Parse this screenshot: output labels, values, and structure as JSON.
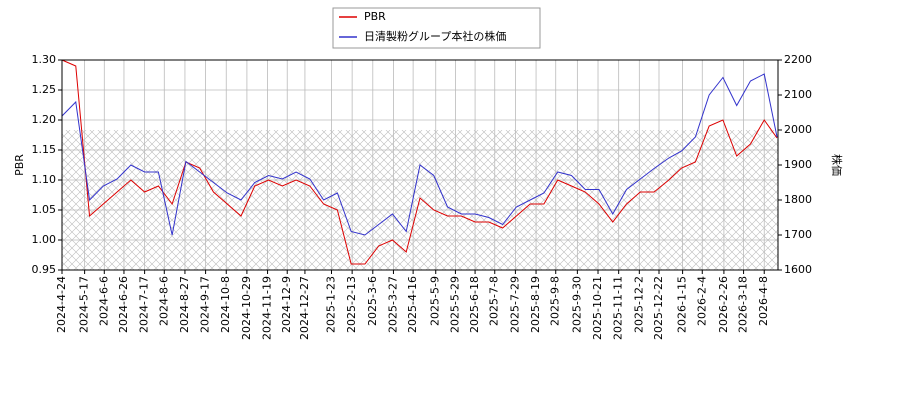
{
  "chart_data": {
    "type": "line",
    "series": [
      {
        "name": "PBR",
        "color": "#dd0000",
        "axis": "y",
        "values": [
          1.3,
          1.29,
          1.04,
          1.06,
          1.08,
          1.1,
          1.08,
          1.09,
          1.06,
          1.13,
          1.12,
          1.08,
          1.06,
          1.04,
          1.09,
          1.1,
          1.09,
          1.1,
          1.09,
          1.06,
          1.05,
          0.96,
          0.96,
          0.99,
          1.0,
          0.98,
          1.07,
          1.05,
          1.04,
          1.04,
          1.03,
          1.03,
          1.02,
          1.04,
          1.06,
          1.06,
          1.1,
          1.09,
          1.08,
          1.06,
          1.03,
          1.06,
          1.08,
          1.08,
          1.1,
          1.12,
          1.13,
          1.19,
          1.2,
          1.14,
          1.16,
          1.2,
          1.17
        ]
      },
      {
        "name": "日清製粉グループ本社の株価",
        "color": "#3333cc",
        "axis": "y2",
        "values": [
          2040,
          2080,
          1800,
          1840,
          1860,
          1900,
          1880,
          1880,
          1700,
          1910,
          1880,
          1850,
          1820,
          1800,
          1850,
          1870,
          1860,
          1880,
          1860,
          1800,
          1820,
          1710,
          1700,
          1730,
          1760,
          1710,
          1900,
          1870,
          1780,
          1760,
          1760,
          1750,
          1730,
          1780,
          1800,
          1820,
          1880,
          1870,
          1830,
          1830,
          1760,
          1830,
          1860,
          1890,
          1920,
          1940,
          1980,
          2100,
          2150,
          2070,
          2140,
          2160,
          1980
        ]
      }
    ],
    "x": [
      "2024-4-24",
      "2024-5-8",
      "2024-5-22",
      "2024-6-5",
      "2024-6-19",
      "2024-7-3",
      "2024-7-17",
      "2024-7-31",
      "2024-8-14",
      "2024-8-28",
      "2024-9-11",
      "2024-9-25",
      "2024-10-9",
      "2024-10-23",
      "2024-11-6",
      "2024-11-20",
      "2024-12-4",
      "2024-12-18",
      "2025-1-1",
      "2025-1-15",
      "2025-1-29",
      "2025-2-12",
      "2025-2-26",
      "2025-3-12",
      "2025-3-26",
      "2025-4-9",
      "2025-4-23",
      "2025-5-7",
      "2025-5-21",
      "2025-6-4",
      "2025-6-18",
      "2025-7-2",
      "2025-7-16",
      "2025-7-30",
      "2025-8-13",
      "2025-8-27",
      "2025-9-10",
      "2025-9-24",
      "2025-10-8",
      "2025-10-22",
      "2025-11-5",
      "2025-11-19",
      "2025-12-3",
      "2025-12-17",
      "2026-1-1",
      "2026-1-14",
      "2026-1-28",
      "2026-2-11",
      "2026-2-25",
      "2026-3-11",
      "2026-3-25",
      "2026-4-8",
      "2026-4-21"
    ],
    "xlim": [
      "2024-4-24",
      "2026-4-22"
    ],
    "xticks": [
      "2024-4-24",
      "2024-5-17",
      "2024-6-6",
      "2024-6-26",
      "2024-7-17",
      "2024-8-6",
      "2024-8-27",
      "2024-9-17",
      "2024-10-8",
      "2024-10-29",
      "2024-11-19",
      "2024-12-9",
      "2024-12-27",
      "2025-1-23",
      "2025-2-13",
      "2025-3-6",
      "2025-3-27",
      "2025-4-16",
      "2025-5-9",
      "2025-5-29",
      "2025-6-18",
      "2025-7-8",
      "2025-7-29",
      "2025-8-19",
      "2025-9-8",
      "2025-9-30",
      "2025-10-21",
      "2025-11-11",
      "2025-12-2",
      "2025-12-22",
      "2026-1-15",
      "2026-2-4",
      "2026-2-26",
      "2026-3-18",
      "2026-4-8"
    ],
    "ylim": [
      0.95,
      1.3
    ],
    "yticks": [
      0.95,
      {
        "value": 1.0,
        "label": "1.00"
      },
      1.05,
      {
        "value": 1.1,
        "label": "1.10"
      },
      1.15,
      {
        "value": 1.2,
        "label": "1.20"
      },
      1.25,
      {
        "value": 1.3,
        "label": "1.30"
      }
    ],
    "y2lim": [
      1600,
      2200
    ],
    "y2ticks": [
      1600,
      1700,
      1800,
      1900,
      2000,
      2100,
      2200
    ],
    "ylabel": "PBR",
    "y2label": "株価",
    "grid": true,
    "legend": "top"
  }
}
